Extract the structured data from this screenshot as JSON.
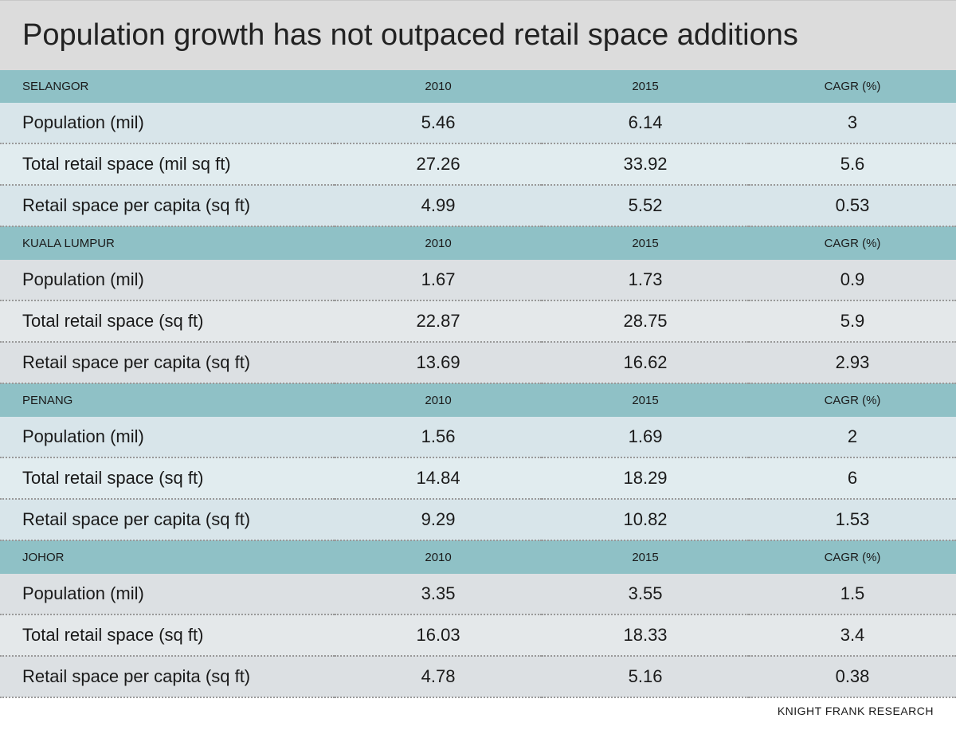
{
  "title": "Population growth has not outpaced retail space additions",
  "source": "KNIGHT FRANK RESEARCH",
  "columns": {
    "c2010": "2010",
    "c2015": "2015",
    "cagr": "CAGR (%)"
  },
  "sections": [
    {
      "name": "SELANGOR",
      "shade": "light",
      "rows": [
        {
          "label": "Population (mil)",
          "v2010": "5.46",
          "v2015": "6.14",
          "cagr": "3"
        },
        {
          "label": "Total retail space (mil sq ft)",
          "v2010": "27.26",
          "v2015": "33.92",
          "cagr": "5.6"
        },
        {
          "label": "Retail space per capita (sq ft)",
          "v2010": "4.99",
          "v2015": "5.52",
          "cagr": "0.53"
        }
      ]
    },
    {
      "name": "KUALA LUMPUR",
      "shade": "dark",
      "rows": [
        {
          "label": "Population (mil)",
          "v2010": "1.67",
          "v2015": "1.73",
          "cagr": "0.9"
        },
        {
          "label": "Total retail space (sq ft)",
          "v2010": "22.87",
          "v2015": "28.75",
          "cagr": "5.9"
        },
        {
          "label": "Retail space per capita (sq ft)",
          "v2010": "13.69",
          "v2015": "16.62",
          "cagr": "2.93"
        }
      ]
    },
    {
      "name": "PENANG",
      "shade": "light",
      "rows": [
        {
          "label": "Population (mil)",
          "v2010": "1.56",
          "v2015": "1.69",
          "cagr": "2"
        },
        {
          "label": "Total retail space (sq ft)",
          "v2010": "14.84",
          "v2015": "18.29",
          "cagr": "6"
        },
        {
          "label": "Retail space per capita (sq ft)",
          "v2010": "9.29",
          "v2015": "10.82",
          "cagr": "1.53"
        }
      ]
    },
    {
      "name": "JOHOR",
      "shade": "dark",
      "rows": [
        {
          "label": "Population (mil)",
          "v2010": "3.35",
          "v2015": "3.55",
          "cagr": "1.5"
        },
        {
          "label": "Total retail space (sq ft)",
          "v2010": "16.03",
          "v2015": "18.33",
          "cagr": "3.4"
        },
        {
          "label": "Retail space per capita (sq ft)",
          "v2010": "4.78",
          "v2015": "5.16",
          "cagr": "0.38"
        }
      ]
    }
  ],
  "styles": {
    "title_bg": "#dcdcdc",
    "header_bg": "#8fc1c6",
    "light_row_a": "#d8e5ea",
    "light_row_b": "#e1ecef",
    "dark_row_a": "#dce0e3",
    "dark_row_b": "#e4e8ea",
    "border_dotted": "#999999",
    "title_fontsize": 38,
    "header_fontsize": 15,
    "data_fontsize": 22
  }
}
